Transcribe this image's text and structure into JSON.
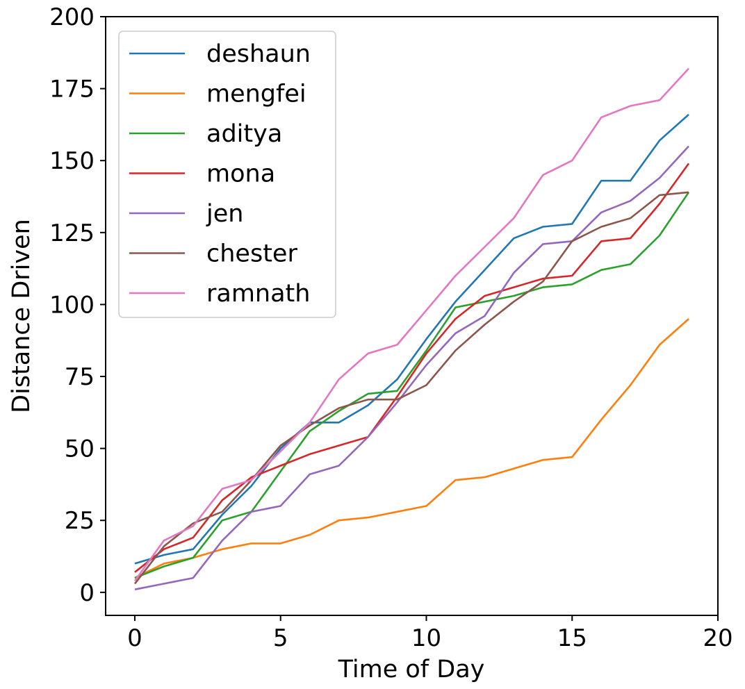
{
  "chart_data": {
    "type": "line",
    "title": "",
    "xlabel": "Time of Day",
    "ylabel": "Distance Driven",
    "xlim": [
      -1,
      20
    ],
    "ylim": [
      -8,
      200
    ],
    "xticks": [
      0,
      5,
      10,
      15,
      20
    ],
    "yticks": [
      0,
      25,
      50,
      75,
      100,
      125,
      150,
      175,
      200
    ],
    "grid": false,
    "legend": "upper-left",
    "x": [
      0,
      1,
      2,
      3,
      4,
      5,
      6,
      7,
      8,
      9,
      10,
      11,
      12,
      13,
      14,
      15,
      16,
      17,
      18,
      19
    ],
    "series": [
      {
        "name": "deshaun",
        "color": "#1f77b4",
        "values": [
          10,
          13,
          15,
          27,
          37,
          50,
          59,
          59,
          65,
          74,
          88,
          101,
          112,
          123,
          127,
          128,
          143,
          143,
          157,
          166
        ]
      },
      {
        "name": "mengfei",
        "color": "#ff7f0e",
        "values": [
          5,
          10,
          12,
          15,
          17,
          17,
          20,
          25,
          26,
          28,
          30,
          39,
          40,
          43,
          46,
          47,
          60,
          72,
          86,
          95
        ]
      },
      {
        "name": "aditya",
        "color": "#2ca02c",
        "values": [
          5,
          9,
          12,
          25,
          28,
          42,
          56,
          63,
          69,
          70,
          84,
          99,
          101,
          103,
          106,
          107,
          112,
          114,
          124,
          139
        ]
      },
      {
        "name": "mona",
        "color": "#d62728",
        "values": [
          7,
          15,
          19,
          32,
          40,
          44,
          48,
          51,
          54,
          68,
          83,
          95,
          103,
          106,
          109,
          110,
          122,
          123,
          135,
          149
        ]
      },
      {
        "name": "jen",
        "color": "#9467bd",
        "values": [
          1,
          3,
          5,
          18,
          28,
          30,
          41,
          44,
          54,
          66,
          79,
          90,
          96,
          111,
          121,
          122,
          132,
          136,
          144,
          155
        ]
      },
      {
        "name": "chester",
        "color": "#8c564b",
        "values": [
          3,
          16,
          24,
          28,
          39,
          51,
          58,
          64,
          67,
          67,
          72,
          84,
          93,
          101,
          108,
          122,
          127,
          130,
          138,
          139
        ]
      },
      {
        "name": "ramnath",
        "color": "#e377c2",
        "values": [
          4,
          18,
          23,
          36,
          39,
          49,
          59,
          74,
          83,
          86,
          98,
          110,
          120,
          130,
          145,
          150,
          165,
          169,
          171,
          182
        ]
      }
    ]
  }
}
